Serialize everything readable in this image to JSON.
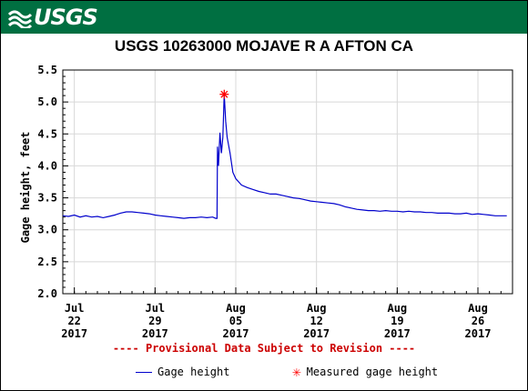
{
  "header": {
    "logo_text": "USGS",
    "brand_color": "#006f41"
  },
  "chart_data": {
    "type": "line",
    "title": "USGS 10263000 MOJAVE R A AFTON CA",
    "xlabel": "",
    "ylabel": "Gage height, feet",
    "ylim": [
      2.0,
      5.5
    ],
    "xlim": [
      "2017-07-21",
      "2017-08-29"
    ],
    "y_ticks": [
      "2.0",
      "2.5",
      "3.0",
      "3.5",
      "4.0",
      "4.5",
      "5.0",
      "5.5"
    ],
    "x_ticks": [
      {
        "date": "2017-07-22",
        "line1": "Jul",
        "line2": "22",
        "line3": "2017"
      },
      {
        "date": "2017-07-29",
        "line1": "Jul",
        "line2": "29",
        "line3": "2017"
      },
      {
        "date": "2017-08-05",
        "line1": "Aug",
        "line2": "05",
        "line3": "2017"
      },
      {
        "date": "2017-08-12",
        "line1": "Aug",
        "line2": "12",
        "line3": "2017"
      },
      {
        "date": "2017-08-19",
        "line1": "Aug",
        "line2": "19",
        "line3": "2017"
      },
      {
        "date": "2017-08-26",
        "line1": "Aug",
        "line2": "26",
        "line3": "2017"
      }
    ],
    "grid": true,
    "legend": "bottom",
    "series": [
      {
        "name": "Gage height",
        "color": "#0000cc",
        "points": [
          [
            "2017-07-21T00:00",
            3.22
          ],
          [
            "2017-07-21T12:00",
            3.21
          ],
          [
            "2017-07-22T00:00",
            3.23
          ],
          [
            "2017-07-22T12:00",
            3.2
          ],
          [
            "2017-07-23T00:00",
            3.22
          ],
          [
            "2017-07-23T12:00",
            3.2
          ],
          [
            "2017-07-24T00:00",
            3.21
          ],
          [
            "2017-07-24T12:00",
            3.19
          ],
          [
            "2017-07-25T00:00",
            3.21
          ],
          [
            "2017-07-25T12:00",
            3.23
          ],
          [
            "2017-07-26T00:00",
            3.26
          ],
          [
            "2017-07-26T12:00",
            3.28
          ],
          [
            "2017-07-27T00:00",
            3.28
          ],
          [
            "2017-07-27T12:00",
            3.27
          ],
          [
            "2017-07-28T00:00",
            3.26
          ],
          [
            "2017-07-28T12:00",
            3.25
          ],
          [
            "2017-07-29T00:00",
            3.23
          ],
          [
            "2017-07-29T12:00",
            3.22
          ],
          [
            "2017-07-30T00:00",
            3.21
          ],
          [
            "2017-07-30T12:00",
            3.2
          ],
          [
            "2017-07-31T00:00",
            3.19
          ],
          [
            "2017-07-31T12:00",
            3.18
          ],
          [
            "2017-08-01T00:00",
            3.19
          ],
          [
            "2017-08-01T12:00",
            3.19
          ],
          [
            "2017-08-02T00:00",
            3.2
          ],
          [
            "2017-08-02T12:00",
            3.19
          ],
          [
            "2017-08-03T00:00",
            3.2
          ],
          [
            "2017-08-03T06:00",
            3.18
          ],
          [
            "2017-08-03T09:00",
            3.18
          ],
          [
            "2017-08-03T10:00",
            4.3
          ],
          [
            "2017-08-03T12:00",
            4.0
          ],
          [
            "2017-08-03T15:00",
            4.52
          ],
          [
            "2017-08-03T18:00",
            4.2
          ],
          [
            "2017-08-03T21:00",
            4.45
          ],
          [
            "2017-08-04T00:00",
            5.12
          ],
          [
            "2017-08-04T03:00",
            4.7
          ],
          [
            "2017-08-04T06:00",
            4.45
          ],
          [
            "2017-08-04T12:00",
            4.2
          ],
          [
            "2017-08-04T18:00",
            3.9
          ],
          [
            "2017-08-05T00:00",
            3.8
          ],
          [
            "2017-08-05T12:00",
            3.7
          ],
          [
            "2017-08-06T00:00",
            3.66
          ],
          [
            "2017-08-06T12:00",
            3.63
          ],
          [
            "2017-08-07T00:00",
            3.6
          ],
          [
            "2017-08-07T12:00",
            3.58
          ],
          [
            "2017-08-08T00:00",
            3.56
          ],
          [
            "2017-08-08T12:00",
            3.56
          ],
          [
            "2017-08-09T00:00",
            3.54
          ],
          [
            "2017-08-09T12:00",
            3.52
          ],
          [
            "2017-08-10T00:00",
            3.5
          ],
          [
            "2017-08-10T12:00",
            3.49
          ],
          [
            "2017-08-11T00:00",
            3.47
          ],
          [
            "2017-08-11T12:00",
            3.45
          ],
          [
            "2017-08-12T00:00",
            3.44
          ],
          [
            "2017-08-12T12:00",
            3.43
          ],
          [
            "2017-08-13T00:00",
            3.42
          ],
          [
            "2017-08-13T12:00",
            3.41
          ],
          [
            "2017-08-14T00:00",
            3.39
          ],
          [
            "2017-08-14T12:00",
            3.36
          ],
          [
            "2017-08-15T00:00",
            3.34
          ],
          [
            "2017-08-15T12:00",
            3.32
          ],
          [
            "2017-08-16T00:00",
            3.31
          ],
          [
            "2017-08-16T12:00",
            3.3
          ],
          [
            "2017-08-17T00:00",
            3.3
          ],
          [
            "2017-08-17T12:00",
            3.29
          ],
          [
            "2017-08-18T00:00",
            3.3
          ],
          [
            "2017-08-18T12:00",
            3.29
          ],
          [
            "2017-08-19T00:00",
            3.29
          ],
          [
            "2017-08-19T12:00",
            3.28
          ],
          [
            "2017-08-20T00:00",
            3.29
          ],
          [
            "2017-08-20T12:00",
            3.28
          ],
          [
            "2017-08-21T00:00",
            3.28
          ],
          [
            "2017-08-21T12:00",
            3.27
          ],
          [
            "2017-08-22T00:00",
            3.27
          ],
          [
            "2017-08-22T12:00",
            3.26
          ],
          [
            "2017-08-23T00:00",
            3.26
          ],
          [
            "2017-08-23T12:00",
            3.26
          ],
          [
            "2017-08-24T00:00",
            3.25
          ],
          [
            "2017-08-24T12:00",
            3.25
          ],
          [
            "2017-08-25T00:00",
            3.26
          ],
          [
            "2017-08-25T12:00",
            3.24
          ],
          [
            "2017-08-26T00:00",
            3.25
          ],
          [
            "2017-08-26T12:00",
            3.24
          ],
          [
            "2017-08-27T00:00",
            3.23
          ],
          [
            "2017-08-27T12:00",
            3.22
          ],
          [
            "2017-08-28T00:00",
            3.22
          ],
          [
            "2017-08-28T12:00",
            3.22
          ]
        ]
      },
      {
        "name": "Measured gage height",
        "color": "#ff0000",
        "marker": "asterisk",
        "points": [
          [
            "2017-08-04T00:00",
            5.12
          ]
        ]
      }
    ],
    "annotation": "---- Provisional Data Subject to Revision ----",
    "annotation_color": "#cc0000"
  }
}
